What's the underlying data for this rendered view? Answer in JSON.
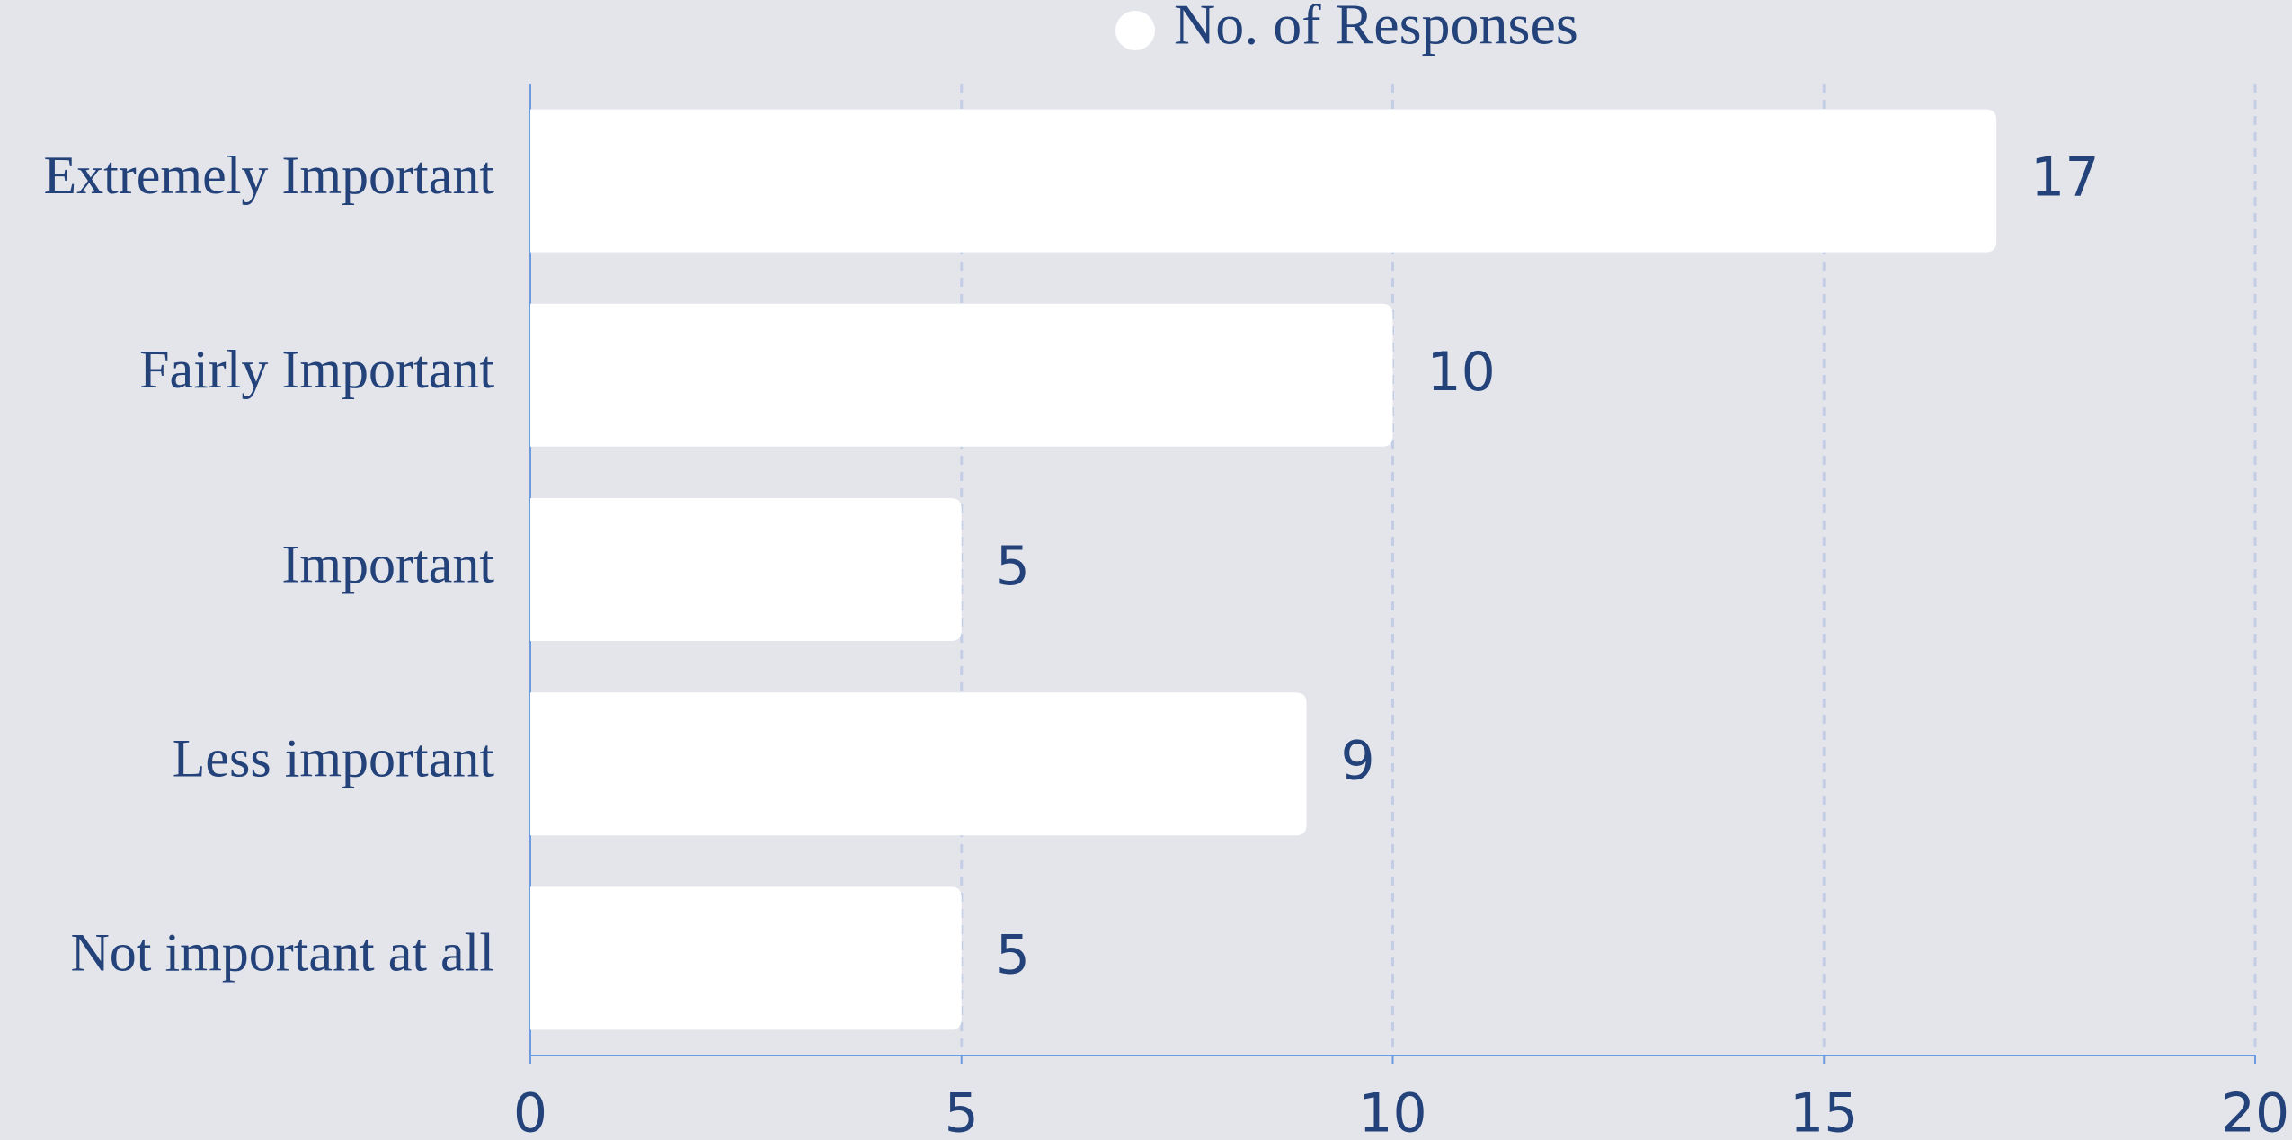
{
  "chart_data": {
    "type": "bar",
    "orientation": "horizontal",
    "categories": [
      "Extremely Important",
      "Fairly Important",
      "Important",
      "Less important",
      "Not important at all"
    ],
    "series": [
      {
        "name": "No. of Responses",
        "color": "#ffffff",
        "values": [
          17,
          10,
          5,
          9,
          5
        ]
      }
    ],
    "xlim": [
      0,
      20
    ],
    "xticks": [
      0,
      5,
      10,
      15,
      20
    ],
    "grid": true,
    "legend": "top"
  }
}
